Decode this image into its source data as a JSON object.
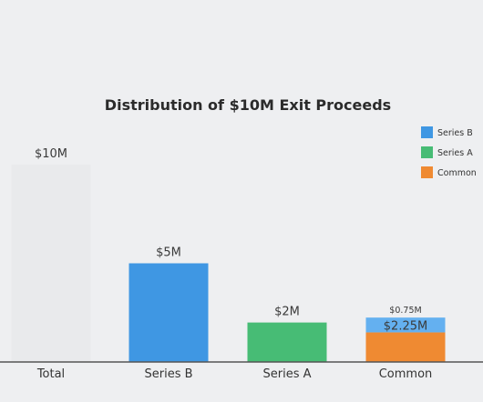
{
  "chart_data": {
    "type": "bar",
    "stacked": true,
    "title": "Distribution of $10M Exit Proceeds",
    "categories": [
      "Total",
      "Series B",
      "Series A",
      "Common"
    ],
    "ylim": [
      0,
      10
    ],
    "unit": "$M",
    "grid": false,
    "legend_position": "top-right",
    "series": [
      {
        "name": "Total",
        "values": [
          10,
          0,
          0,
          0
        ],
        "color": "#e9eaec",
        "legend": false
      },
      {
        "name": "Series B",
        "values": [
          0,
          5,
          0,
          0.75
        ],
        "color": "#3f97e3",
        "stack_colors": {
          "Common": "#64b0f0"
        },
        "legend": true
      },
      {
        "name": "Series A",
        "values": [
          0,
          0,
          2,
          0
        ],
        "color": "#47bc75",
        "legend": true
      },
      {
        "name": "Common",
        "values": [
          0,
          0,
          0,
          1.5
        ],
        "color": "#ef8a32",
        "legend": true
      }
    ],
    "data_labels": [
      {
        "category": "Total",
        "text": "$10M",
        "position": "above"
      },
      {
        "category": "Series B",
        "text": "$5M",
        "position": "above"
      },
      {
        "category": "Series A",
        "text": "$2M",
        "position": "above"
      },
      {
        "category": "Common",
        "text": "$0.75M",
        "position": "above",
        "size": "small"
      },
      {
        "category": "Common",
        "text": "$2.25M",
        "position": "inside",
        "color": "#4a86c8"
      }
    ]
  }
}
